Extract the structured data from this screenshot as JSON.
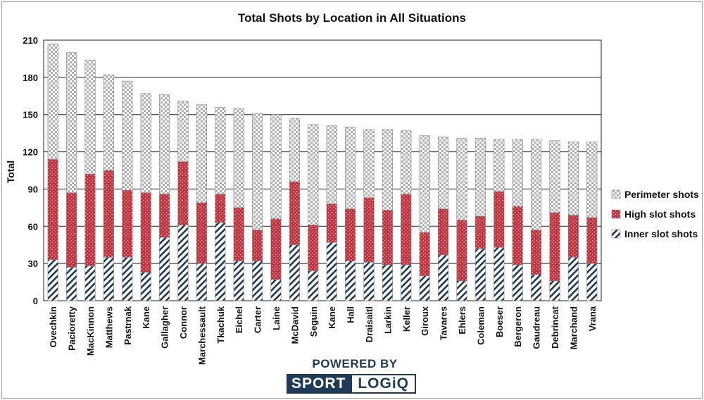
{
  "chart_data": {
    "type": "bar",
    "stacked": true,
    "title": "Total Shots by Location in All Situations",
    "xlabel": "",
    "ylabel": "Total",
    "ylim": [
      0,
      210
    ],
    "yticks": [
      0,
      30,
      60,
      90,
      120,
      150,
      180,
      210
    ],
    "grid": true,
    "legend_position": "right",
    "categories": [
      "Ovechkin",
      "Pacioretty",
      "MacKinnon",
      "Matthews",
      "Pastrnak",
      "Kane",
      "Gallagher",
      "Connor",
      "Marchessault",
      "Tkachuk",
      "Eichel",
      "Carter",
      "Laine",
      "McDavid",
      "Seguin",
      "Kane",
      "Hall",
      "Draisaitl",
      "Larkin",
      "Keller",
      "Giroux",
      "Tavares",
      "Ehlers",
      "Coleman",
      "Boeser",
      "Bergeron",
      "Gaudreau",
      "Debrincat",
      "Marchand",
      "Vrana"
    ],
    "series": [
      {
        "name": "Inner slot shots",
        "color": "#1f3b57",
        "pattern": "diagonal-stripes",
        "values": [
          33,
          27,
          28,
          35,
          35,
          23,
          51,
          61,
          30,
          63,
          32,
          32,
          17,
          45,
          24,
          47,
          32,
          31,
          29,
          29,
          20,
          37,
          16,
          42,
          43,
          29,
          21,
          16,
          35,
          30
        ]
      },
      {
        "name": "High slot shots",
        "color": "#c0303c",
        "pattern": "dots",
        "values": [
          81,
          60,
          74,
          70,
          54,
          64,
          35,
          51,
          49,
          23,
          43,
          25,
          49,
          51,
          37,
          31,
          42,
          52,
          44,
          57,
          35,
          37,
          49,
          26,
          45,
          47,
          36,
          55,
          34,
          37
        ]
      },
      {
        "name": "Perimeter shots",
        "color": "#bbbbbb",
        "pattern": "checkerboard",
        "values": [
          93,
          113,
          92,
          77,
          88,
          80,
          80,
          49,
          79,
          70,
          80,
          94,
          84,
          51,
          81,
          63,
          66,
          55,
          65,
          51,
          78,
          58,
          66,
          63,
          42,
          54,
          73,
          58,
          59,
          61
        ]
      }
    ]
  },
  "branding": {
    "top_text": "POWERED BY",
    "left_text": "SPORT",
    "right_text": "LOGiQ"
  }
}
